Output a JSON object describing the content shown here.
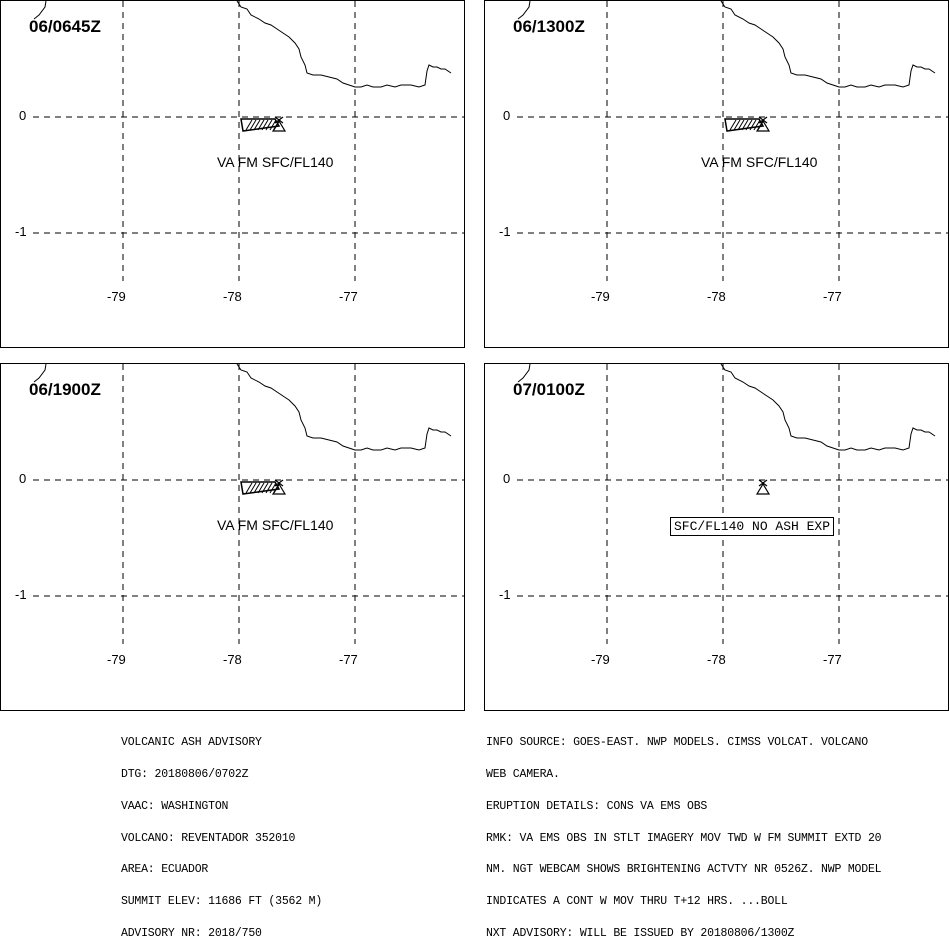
{
  "panels": [
    {
      "title": "06/0645Z",
      "ash_label": "VA FM SFC/FL140",
      "boxed": false,
      "has_plume": true
    },
    {
      "title": "06/1300Z",
      "ash_label": "VA FM SFC/FL140",
      "boxed": false,
      "has_plume": true
    },
    {
      "title": "06/1900Z",
      "ash_label": "VA FM SFC/FL140",
      "boxed": false,
      "has_plume": true
    },
    {
      "title": "07/0100Z",
      "ash_label": "SFC/FL140 NO ASH EXP",
      "boxed": true,
      "has_plume": false
    }
  ],
  "grid": {
    "latitudes": [
      "0",
      "-1"
    ],
    "longitudes": [
      "-79",
      "-78",
      "-77"
    ]
  },
  "advisory_left": [
    "VOLCANIC ASH ADVISORY",
    "DTG: 20180806/0702Z",
    "VAAC: WASHINGTON",
    "VOLCANO: REVENTADOR 352010",
    "AREA: ECUADOR",
    "SUMMIT ELEV: 11686 FT (3562 M)",
    "ADVISORY NR: 2018/750"
  ],
  "advisory_right": [
    "INFO SOURCE: GOES-EAST. NWP MODELS. CIMSS VOLCAT. VOLCANO",
    "WEB CAMERA.",
    "ERUPTION DETAILS: CONS VA EMS OBS",
    "RMK: VA EMS OBS IN STLT IMAGERY MOV TWD W FM SUMMIT EXTD 20",
    "NM. NGT WEBCAM SHOWS BRIGHTENING ACTVTY NR 0526Z. NWP MODEL",
    "INDICATES A CONT W MOV THRU T+12 HRS. ...BOLL",
    "NXT ADVISORY: WILL BE ISSUED BY 20180806/1300Z"
  ]
}
